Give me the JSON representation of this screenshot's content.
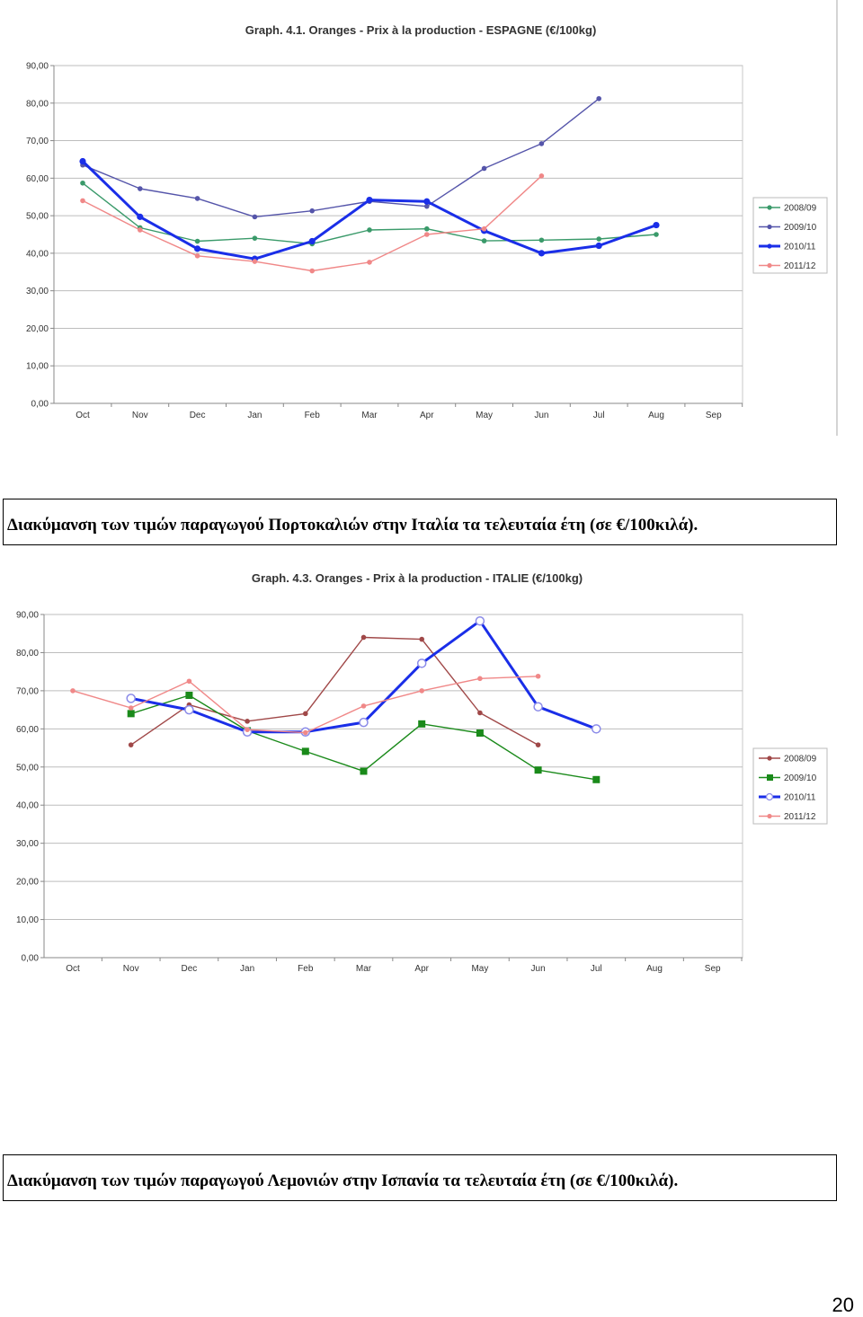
{
  "charts": [
    {
      "title": "Graph. 4.1. Oranges - Prix à la production - ESPAGNE (€/100kg)",
      "y_ticks": [
        "0,00",
        "10,00",
        "20,00",
        "30,00",
        "40,00",
        "50,00",
        "60,00",
        "70,00",
        "80,00",
        "90,00"
      ],
      "x_ticks": [
        "Oct",
        "Nov",
        "Dec",
        "Jan",
        "Feb",
        "Mar",
        "Apr",
        "May",
        "Jun",
        "Jul",
        "Aug",
        "Sep"
      ]
    },
    {
      "title": "Graph. 4.3. Oranges - Prix à la production - ITALIE (€/100kg)",
      "y_ticks": [
        "0,00",
        "10,00",
        "20,00",
        "30,00",
        "40,00",
        "50,00",
        "60,00",
        "70,00",
        "80,00",
        "90,00"
      ],
      "x_ticks": [
        "Oct",
        "Nov",
        "Dec",
        "Jan",
        "Feb",
        "Mar",
        "Apr",
        "May",
        "Jun",
        "Jul",
        "Aug",
        "Sep"
      ]
    }
  ],
  "captions": {
    "first": "Διακύμανση των τιμών παραγωγού Πορτοκαλιών στην Ιταλία τα τελευταία έτη (σε €/100κιλά).",
    "second": "Διακύμανση των τιμών παραγωγού Λεμονιών στην Ισπανία τα τελευταία έτη (σε €/100κιλά)."
  },
  "page_number": "20",
  "chart_data": [
    {
      "type": "line",
      "title": "Graph. 4.1. Oranges - Prix à la production - ESPAGNE (€/100kg)",
      "categories": [
        "Oct",
        "Nov",
        "Dec",
        "Jan",
        "Feb",
        "Mar",
        "Apr",
        "May",
        "Jun",
        "Jul",
        "Aug",
        "Sep"
      ],
      "ylim": [
        0,
        90
      ],
      "grid": true,
      "legend_position": "right",
      "series": [
        {
          "name": "2008/09",
          "color": "#3a9a6a",
          "marker": "circle",
          "values": [
            58.7,
            46.8,
            43.2,
            44.0,
            42.5,
            46.2,
            46.5,
            43.3,
            43.5,
            43.8,
            45.0,
            null
          ]
        },
        {
          "name": "2009/10",
          "color": "#5555aa",
          "marker": "circle",
          "values": [
            63.5,
            57.2,
            54.6,
            49.7,
            51.3,
            53.8,
            52.5,
            62.6,
            69.2,
            81.2,
            null,
            null
          ]
        },
        {
          "name": "2010/11",
          "color": "#1a2ee8",
          "marker": "circle",
          "values": [
            64.5,
            49.7,
            41.2,
            38.5,
            43.2,
            54.2,
            53.8,
            46.0,
            40.0,
            42.0,
            47.5,
            null
          ]
        },
        {
          "name": "2011/12",
          "color": "#f08888",
          "marker": "circle",
          "values": [
            54.0,
            46.2,
            39.3,
            37.8,
            35.3,
            37.6,
            45.0,
            46.5,
            60.6,
            null,
            null,
            null
          ]
        }
      ]
    },
    {
      "type": "line",
      "title": "Graph. 4.3. Oranges - Prix à la production - ITALIE (€/100kg)",
      "categories": [
        "Oct",
        "Nov",
        "Dec",
        "Jan",
        "Feb",
        "Mar",
        "Apr",
        "May",
        "Jun",
        "Jul",
        "Aug",
        "Sep"
      ],
      "ylim": [
        0,
        90
      ],
      "grid": true,
      "legend_position": "right",
      "series": [
        {
          "name": "2008/09",
          "color": "#a04848",
          "marker": "circle",
          "values": [
            null,
            55.8,
            66.3,
            62.0,
            64.0,
            84.0,
            83.5,
            64.2,
            55.8,
            null,
            null,
            null
          ]
        },
        {
          "name": "2009/10",
          "color": "#1a8a1a",
          "marker": "square",
          "values": [
            null,
            64.0,
            68.8,
            59.5,
            54.1,
            48.9,
            61.3,
            58.9,
            49.2,
            46.7,
            null,
            null
          ]
        },
        {
          "name": "2010/11",
          "color": "#1a2ee8",
          "marker": "hollow",
          "values": [
            null,
            68.0,
            65.0,
            59.2,
            59.2,
            61.7,
            77.2,
            88.3,
            65.8,
            60.0,
            null,
            null
          ]
        },
        {
          "name": "2011/12",
          "color": "#f08888",
          "marker": "circle",
          "values": [
            70.0,
            65.5,
            72.5,
            59.8,
            59.0,
            66.0,
            70.0,
            73.2,
            73.8,
            null,
            null,
            null
          ]
        }
      ]
    }
  ]
}
